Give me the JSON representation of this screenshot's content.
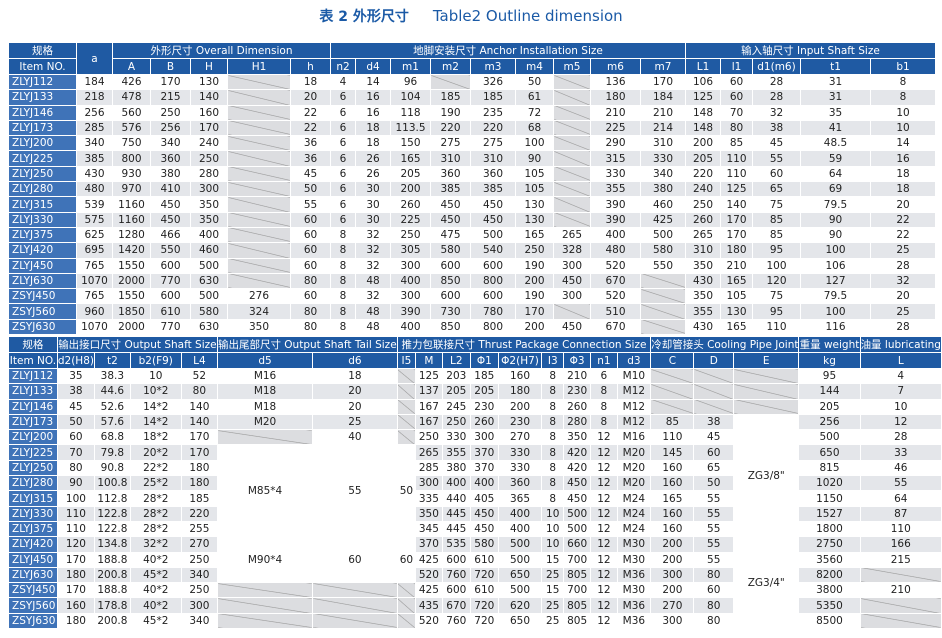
{
  "title_cn": "表 2 外形尺寸",
  "title_en": "Table2 Outline dimension",
  "tables": [
    {
      "groups": [
        {
          "label": "规格",
          "columns": [
            "Item NO."
          ]
        },
        {
          "columns": [
            "a"
          ]
        },
        {
          "label": "外形尺寸  Overall Dimension",
          "columns": [
            "A",
            "B",
            "H",
            "H1",
            "h"
          ]
        },
        {
          "label": "地脚安装尺寸  Anchor Installation Size",
          "columns": [
            "n2",
            "d4",
            "m1",
            "m2",
            "m3",
            "m4",
            "m5",
            "m6",
            "m7"
          ]
        },
        {
          "label": "输入轴尺寸  Input Shaft Size",
          "columns": [
            "L1",
            "l1",
            "d1(m6)",
            "t1",
            "b1"
          ]
        }
      ],
      "rows": [
        [
          "ZLYJ112",
          184,
          426,
          170,
          130,
          null,
          18,
          4,
          14,
          96,
          null,
          326,
          50,
          null,
          136,
          170,
          106,
          60,
          28,
          31,
          8
        ],
        [
          "ZLYJ133",
          218,
          478,
          215,
          140,
          null,
          20,
          6,
          16,
          104,
          185,
          185,
          61,
          null,
          180,
          184,
          125,
          60,
          28,
          31,
          8
        ],
        [
          "ZLYJ146",
          256,
          560,
          250,
          160,
          null,
          22,
          6,
          16,
          118,
          190,
          235,
          72,
          null,
          210,
          210,
          148,
          70,
          32,
          35,
          10
        ],
        [
          "ZLYJ173",
          285,
          576,
          256,
          170,
          null,
          22,
          6,
          18,
          113.5,
          220,
          220,
          68,
          null,
          225,
          214,
          148,
          80,
          38,
          41,
          10
        ],
        [
          "ZLYJ200",
          340,
          750,
          340,
          240,
          null,
          36,
          6,
          18,
          150,
          275,
          275,
          100,
          null,
          290,
          310,
          200,
          85,
          45,
          48.5,
          14
        ],
        [
          "ZLYJ225",
          385,
          800,
          360,
          250,
          null,
          36,
          6,
          26,
          165,
          310,
          310,
          90,
          null,
          315,
          330,
          205,
          110,
          55,
          59,
          16
        ],
        [
          "ZLYJ250",
          430,
          930,
          380,
          280,
          null,
          45,
          6,
          26,
          205,
          360,
          360,
          105,
          null,
          330,
          340,
          220,
          110,
          60,
          64,
          18
        ],
        [
          "ZLYJ280",
          480,
          970,
          410,
          300,
          null,
          50,
          6,
          30,
          200,
          385,
          385,
          105,
          null,
          355,
          380,
          240,
          125,
          65,
          69,
          18
        ],
        [
          "ZLYJ315",
          539,
          1160,
          450,
          350,
          null,
          55,
          6,
          30,
          260,
          450,
          450,
          130,
          null,
          390,
          460,
          250,
          140,
          75,
          79.5,
          20
        ],
        [
          "ZLYJ330",
          575,
          1160,
          450,
          350,
          null,
          60,
          6,
          30,
          225,
          450,
          450,
          130,
          null,
          390,
          425,
          260,
          170,
          85,
          90,
          22
        ],
        [
          "ZLYJ375",
          625,
          1280,
          466,
          400,
          null,
          60,
          8,
          32,
          250,
          475,
          500,
          165,
          265,
          400,
          500,
          265,
          170,
          85,
          90,
          22
        ],
        [
          "ZLYJ420",
          695,
          1420,
          550,
          460,
          null,
          60,
          8,
          32,
          305,
          580,
          540,
          250,
          328,
          480,
          580,
          310,
          180,
          95,
          100,
          25
        ],
        [
          "ZLYJ450",
          765,
          1550,
          600,
          500,
          null,
          60,
          8,
          32,
          300,
          600,
          600,
          190,
          300,
          520,
          550,
          350,
          210,
          100,
          106,
          28
        ],
        [
          "ZLYJ630",
          1070,
          2000,
          770,
          630,
          null,
          80,
          8,
          48,
          400,
          850,
          800,
          200,
          450,
          670,
          null,
          430,
          165,
          120,
          127,
          32
        ],
        [
          "ZSYJ450",
          765,
          1550,
          600,
          500,
          276,
          60,
          8,
          32,
          300,
          600,
          600,
          190,
          300,
          520,
          null,
          350,
          105,
          75,
          79.5,
          20
        ],
        [
          "ZSYJ560",
          960,
          1850,
          610,
          580,
          324,
          80,
          8,
          48,
          390,
          730,
          780,
          170,
          null,
          510,
          null,
          355,
          130,
          95,
          100,
          25
        ],
        [
          "ZSYJ630",
          1070,
          2000,
          770,
          630,
          350,
          80,
          8,
          48,
          400,
          850,
          800,
          200,
          450,
          670,
          null,
          430,
          165,
          110,
          116,
          28
        ]
      ]
    },
    {
      "groups": [
        {
          "label": "规格",
          "columns": [
            "Item NO."
          ]
        },
        {
          "label": "输出接口尺寸  Output Shaft Size",
          "columns": [
            "d2(H8)",
            "t2",
            "b2(F9)",
            "L4"
          ]
        },
        {
          "label": "输出尾部尺寸 Output Shaft Tail Size",
          "columns": [
            "d5",
            "d6"
          ]
        },
        {
          "label": "推力包联接尺寸  Thrust Package Connection Size",
          "columns": [
            "I5",
            "M",
            "L2",
            "Φ1",
            "Φ2(H7)",
            "I3",
            "Φ3",
            "n1",
            "d3"
          ]
        },
        {
          "label": "冷却管接头 Cooling Pipe Joint",
          "columns": [
            "C",
            "D",
            "E"
          ]
        },
        {
          "label": "重量 weight",
          "columns": [
            "kg"
          ]
        },
        {
          "label": "油量 lubricating",
          "columns": [
            "L"
          ]
        }
      ],
      "rows": [
        [
          "ZLYJ112",
          35,
          38.3,
          "10",
          52,
          "M16",
          18,
          null,
          125,
          203,
          185,
          160,
          8,
          210,
          6,
          "M10",
          null,
          null,
          null,
          95,
          4
        ],
        [
          "ZLYJ133",
          38,
          44.6,
          "10*2",
          80,
          "M18",
          20,
          null,
          137,
          205,
          205,
          180,
          8,
          230,
          8,
          "M12",
          null,
          null,
          null,
          144,
          7
        ],
        [
          "ZLYJ146",
          45,
          52.6,
          "14*2",
          140,
          "M18",
          20,
          null,
          167,
          245,
          230,
          200,
          8,
          260,
          8,
          "M12",
          null,
          null,
          null,
          205,
          10
        ],
        [
          "ZLYJ173",
          50,
          57.6,
          "14*2",
          140,
          "M20",
          25,
          null,
          167,
          250,
          260,
          230,
          8,
          280,
          8,
          "M12",
          85,
          38,
          "ZG3/8\"",
          256,
          12
        ],
        [
          "ZLYJ200",
          60,
          68.8,
          "18*2",
          170,
          null,
          40,
          null,
          250,
          330,
          300,
          270,
          8,
          350,
          12,
          "M16",
          110,
          45,
          null,
          500,
          28
        ],
        [
          "ZLYJ225",
          70,
          79.8,
          "20*2",
          170,
          "M85*4",
          55,
          50,
          265,
          355,
          370,
          330,
          8,
          420,
          12,
          "M20",
          145,
          60,
          null,
          650,
          33
        ],
        [
          "ZLYJ250",
          80,
          90.8,
          "22*2",
          180,
          null,
          null,
          null,
          285,
          380,
          370,
          330,
          8,
          420,
          12,
          "M20",
          160,
          65,
          null,
          815,
          46
        ],
        [
          "ZLYJ280",
          90,
          100.8,
          "25*2",
          180,
          null,
          null,
          null,
          300,
          400,
          400,
          360,
          8,
          450,
          12,
          "M20",
          160,
          50,
          null,
          1020,
          55
        ],
        [
          "ZLYJ315",
          100,
          112.8,
          "28*2",
          185,
          null,
          null,
          null,
          335,
          440,
          405,
          365,
          8,
          450,
          12,
          "M24",
          165,
          55,
          null,
          1150,
          64
        ],
        [
          "ZLYJ330",
          110,
          122.8,
          "28*2",
          220,
          null,
          null,
          null,
          350,
          445,
          450,
          400,
          10,
          500,
          12,
          "M24",
          160,
          55,
          null,
          1527,
          87
        ],
        [
          "ZLYJ375",
          110,
          122.8,
          "28*2",
          255,
          null,
          null,
          null,
          345,
          445,
          450,
          400,
          10,
          500,
          12,
          "M24",
          160,
          55,
          null,
          1800,
          110
        ],
        [
          "ZLYJ420",
          120,
          134.8,
          "32*2",
          270,
          "M90*4",
          60,
          60,
          370,
          535,
          580,
          500,
          10,
          660,
          12,
          "M30",
          200,
          55,
          "ZG3/4\"",
          2750,
          166
        ],
        [
          "ZLYJ450",
          170,
          188.8,
          "40*2",
          250,
          null,
          null,
          null,
          425,
          600,
          610,
          500,
          15,
          700,
          12,
          "M30",
          200,
          55,
          null,
          3560,
          215
        ],
        [
          "ZLYJ630",
          180,
          200.8,
          "45*2",
          340,
          null,
          null,
          null,
          520,
          760,
          720,
          650,
          25,
          805,
          12,
          "M36",
          300,
          80,
          null,
          8200,
          null
        ],
        [
          "ZSYJ450",
          170,
          188.8,
          "40*2",
          250,
          null,
          null,
          null,
          425,
          600,
          610,
          500,
          15,
          700,
          12,
          "M30",
          200,
          60,
          null,
          3800,
          210
        ],
        [
          "ZSYJ560",
          160,
          178.8,
          "40*2",
          300,
          null,
          null,
          null,
          435,
          670,
          720,
          620,
          25,
          805,
          12,
          "M36",
          270,
          80,
          null,
          5350,
          null
        ],
        [
          "ZSYJ630",
          180,
          200.8,
          "45*2",
          340,
          null,
          null,
          null,
          520,
          760,
          720,
          650,
          25,
          805,
          12,
          "M36",
          300,
          80,
          null,
          8500,
          null
        ]
      ]
    }
  ]
}
